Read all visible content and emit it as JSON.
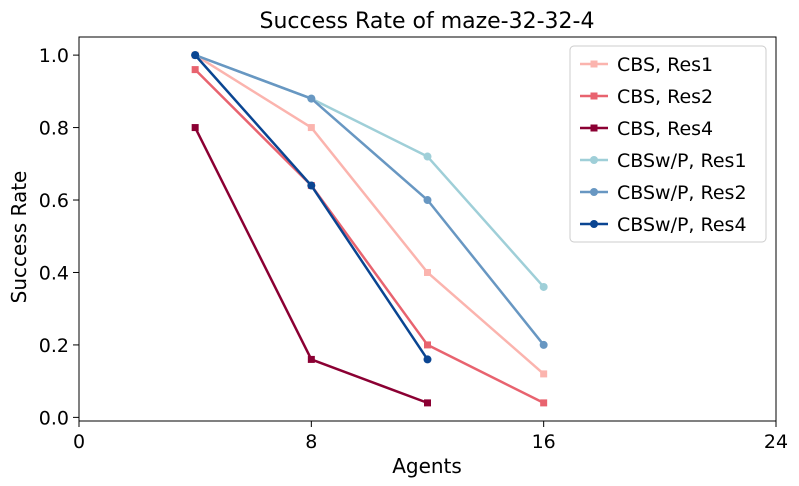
{
  "chart_data": {
    "type": "line",
    "title": "Success Rate of maze-32-32-4",
    "xlabel": "Agents",
    "ylabel": "Success Rate",
    "xlim": [
      0,
      24
    ],
    "ylim": [
      -0.01,
      1.05
    ],
    "xticks": [
      0,
      8,
      16,
      24
    ],
    "yticks": [
      0.0,
      0.2,
      0.4,
      0.6,
      0.8,
      1.0
    ],
    "ytick_labels": [
      "0.0",
      "0.2",
      "0.4",
      "0.6",
      "0.8",
      "1.0"
    ],
    "x": [
      4,
      8,
      12,
      16
    ],
    "grid": false,
    "legend_position": "top-right",
    "series": [
      {
        "name": "CBS, Res1",
        "color": "#fbb4ae",
        "marker": "square",
        "values": [
          1.0,
          0.8,
          0.4,
          0.12
        ]
      },
      {
        "name": "CBS, Res2",
        "color": "#e8636f",
        "marker": "square",
        "values": [
          0.96,
          0.64,
          0.2,
          0.04
        ]
      },
      {
        "name": "CBS, Res4",
        "color": "#8b0033",
        "marker": "square",
        "values": [
          0.8,
          0.16,
          0.04,
          null
        ]
      },
      {
        "name": "CBSw/P, Res1",
        "color": "#9fcfd8",
        "marker": "circle",
        "values": [
          1.0,
          0.88,
          0.72,
          0.36
        ]
      },
      {
        "name": "CBSw/P, Res2",
        "color": "#6897c2",
        "marker": "circle",
        "values": [
          1.0,
          0.88,
          0.6,
          0.2
        ]
      },
      {
        "name": "CBSw/P, Res4",
        "color": "#0a4592",
        "marker": "circle",
        "values": [
          1.0,
          0.64,
          0.16,
          null
        ]
      }
    ]
  }
}
